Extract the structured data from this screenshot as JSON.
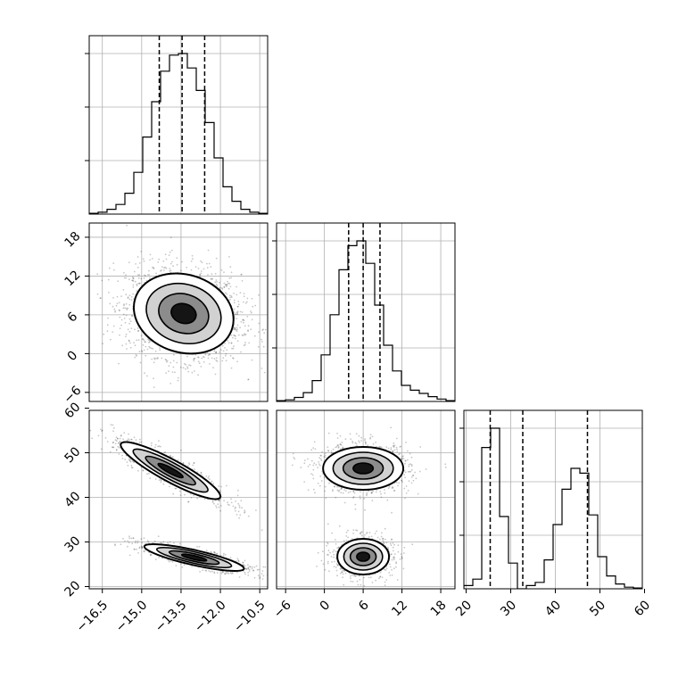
{
  "chart_data": {
    "type": "corner",
    "colors": {
      "ink": "#000000",
      "grid": "#b0b0b0",
      "scatter": "#000000",
      "density_dark": "#000000",
      "density_mid": "#7a7a7a",
      "density_light": "#cccccc"
    },
    "grid": true,
    "parameters": [
      {
        "range": [
          -17.0,
          -10.2
        ],
        "ticks": [
          -16.5,
          -15.0,
          -13.5,
          -12.0,
          -10.5
        ],
        "tick_labels": [
          "−16.5",
          "−15.0",
          "−13.5",
          "−12.0",
          "−10.5"
        ],
        "quantiles": [
          -14.33,
          -13.46,
          -12.6
        ],
        "hist_bin_width": 0.34,
        "histogram": [
          0.005,
          0.012,
          0.03,
          0.06,
          0.13,
          0.26,
          0.48,
          0.7,
          0.89,
          0.99,
          1.0,
          0.91,
          0.77,
          0.57,
          0.35,
          0.17,
          0.08,
          0.03,
          0.012,
          0.005
        ]
      },
      {
        "range": [
          -7.4,
          20.2
        ],
        "ticks": [
          -6,
          0,
          6,
          12,
          18
        ],
        "tick_labels": [
          "−6",
          "0",
          "6",
          "12",
          "18"
        ],
        "quantiles": [
          3.75,
          6.0,
          8.6
        ],
        "hist_bin_width": 1.38,
        "histogram": [
          0.005,
          0.01,
          0.025,
          0.055,
          0.13,
          0.29,
          0.54,
          0.82,
          0.97,
          1.0,
          0.86,
          0.6,
          0.35,
          0.19,
          0.1,
          0.07,
          0.05,
          0.03,
          0.015,
          0.005
        ]
      },
      {
        "range": [
          19.5,
          59.5
        ],
        "ticks": [
          20,
          30,
          40,
          50,
          60
        ],
        "tick_labels": [
          "20",
          "30",
          "40",
          "50",
          "60"
        ],
        "quantiles": [
          25.4,
          32.7,
          47.2
        ],
        "hist_bin_width": 2.0,
        "histogram": [
          0.02,
          0.06,
          0.88,
          1.0,
          0.45,
          0.16,
          0.0,
          0.02,
          0.04,
          0.18,
          0.4,
          0.62,
          0.75,
          0.72,
          0.46,
          0.2,
          0.08,
          0.03,
          0.01,
          0.005
        ]
      }
    ],
    "pairs": [
      {
        "x_param": 0,
        "y_param": 1,
        "clusters": [
          {
            "mean": [
              -13.4,
              6.2
            ],
            "sd": [
              0.95,
              3.1
            ],
            "rho": -0.15,
            "n": 2200
          }
        ]
      },
      {
        "x_param": 0,
        "y_param": 2,
        "clusters": [
          {
            "mean": [
              -13.9,
              46.0
            ],
            "sd": [
              0.95,
              3.2
            ],
            "rho": -0.9,
            "n": 1000
          },
          {
            "mean": [
              -13.0,
              26.5
            ],
            "sd": [
              0.95,
              1.5
            ],
            "rho": -0.82,
            "n": 900
          }
        ]
      },
      {
        "x_param": 1,
        "y_param": 2,
        "clusters": [
          {
            "mean": [
              6.0,
              46.5
            ],
            "sd": [
              3.1,
              2.4
            ],
            "rho": 0.0,
            "n": 1100
          },
          {
            "mean": [
              6.0,
              26.7
            ],
            "sd": [
              2.0,
              2.0
            ],
            "rho": 0.0,
            "n": 900
          }
        ]
      }
    ]
  }
}
